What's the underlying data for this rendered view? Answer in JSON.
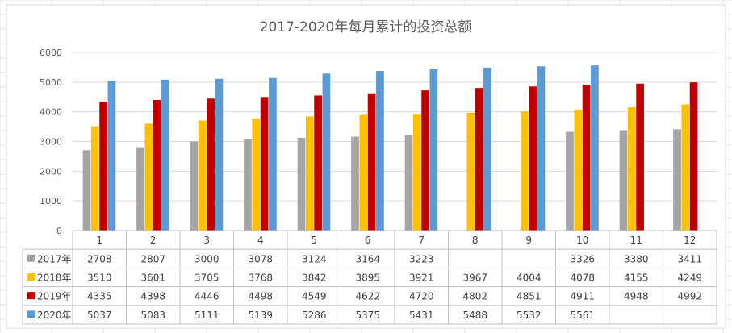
{
  "chart_data": {
    "type": "bar",
    "title": "2017-2020年每月累计的投资总额",
    "xlabel": "",
    "ylabel": "",
    "categories": [
      "1",
      "2",
      "3",
      "4",
      "5",
      "6",
      "7",
      "8",
      "9",
      "10",
      "11",
      "12"
    ],
    "ylim": [
      0,
      6000
    ],
    "yticks": [
      "0",
      "1000",
      "2000",
      "3000",
      "4000",
      "5000",
      "6000"
    ],
    "grid": true,
    "legend": "data-table-left",
    "series": [
      {
        "name": "2017年",
        "color": "#a5a5a5",
        "values": [
          2708,
          2807,
          3000,
          3078,
          3124,
          3164,
          3223,
          null,
          null,
          3326,
          3380,
          3411
        ]
      },
      {
        "name": "2018年",
        "color": "#ffc000",
        "values": [
          3510,
          3601,
          3705,
          3768,
          3842,
          3895,
          3921,
          3967,
          4004,
          4078,
          4155,
          4249
        ]
      },
      {
        "name": "2019年",
        "color": "#c00000",
        "values": [
          4335,
          4398,
          4446,
          4498,
          4549,
          4622,
          4720,
          4802,
          4851,
          4911,
          4948,
          4992
        ]
      },
      {
        "name": "2020年",
        "color": "#5b9bd5",
        "values": [
          5037,
          5083,
          5111,
          5139,
          5286,
          5375,
          5431,
          5488,
          5532,
          5561,
          null,
          null
        ]
      }
    ]
  }
}
